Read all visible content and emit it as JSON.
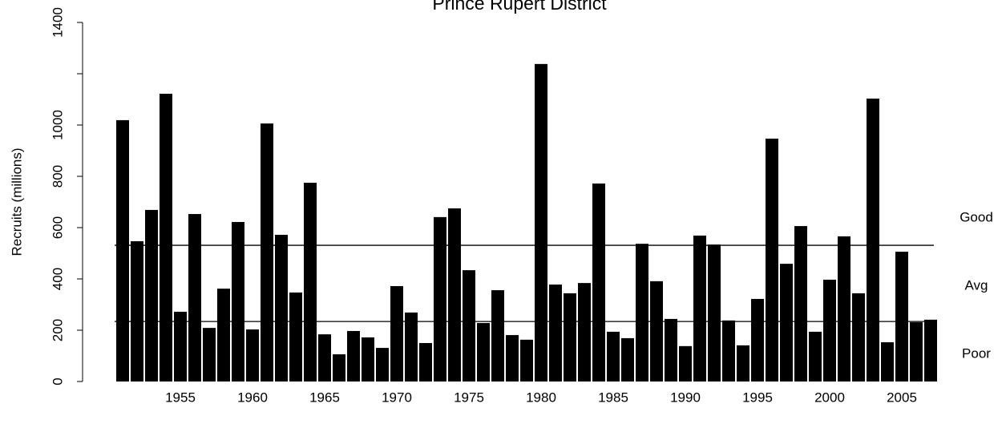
{
  "chart_data": {
    "type": "bar",
    "title": "Prince Rupert District",
    "ylabel": "Recruits (millions)",
    "categories": [
      null,
      null,
      null,
      null,
      "1955",
      null,
      null,
      null,
      null,
      "1960",
      null,
      null,
      null,
      null,
      "1965",
      null,
      null,
      null,
      null,
      "1970",
      null,
      null,
      null,
      null,
      "1975",
      null,
      null,
      null,
      null,
      "1980",
      null,
      null,
      null,
      null,
      "1985",
      null,
      null,
      null,
      null,
      "1990",
      null,
      null,
      null,
      null,
      "1995",
      null,
      null,
      null,
      null,
      "2000",
      null,
      null,
      null,
      null,
      "2005",
      null,
      null
    ],
    "values": [
      1019,
      547,
      669,
      1122,
      272,
      653,
      209,
      362,
      622,
      203,
      1006,
      572,
      347,
      775,
      184,
      106,
      197,
      172,
      131,
      372,
      269,
      150,
      641,
      675,
      434,
      228,
      356,
      181,
      163,
      1238,
      378,
      344,
      384,
      772,
      194,
      169,
      537,
      391,
      244,
      138,
      569,
      534,
      238,
      141,
      322,
      947,
      459,
      606,
      194,
      397,
      566,
      344,
      1103,
      153,
      506,
      231,
      241
    ],
    "color": "#000000",
    "ylim": [
      0,
      1400
    ],
    "yticks": [
      0,
      200,
      400,
      600,
      800,
      1000,
      {
        "value": 1200,
        "label": null
      },
      1400
    ],
    "reference_lines": [
      531,
      234
    ],
    "annotations": [
      "Good",
      "Avg",
      "Poor"
    ]
  }
}
